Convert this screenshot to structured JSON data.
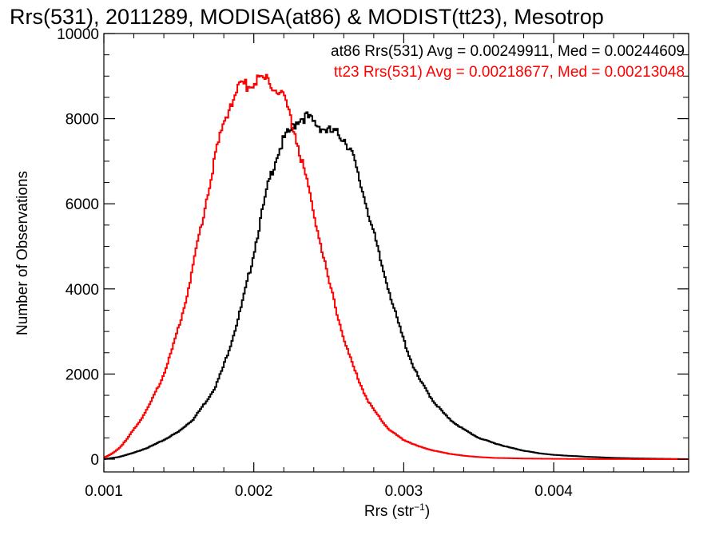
{
  "chart_data": {
    "type": "line",
    "step": true,
    "title": "Rrs(531), 2011289, MODISA(at86) & MODIST(tt23), Mesotrop",
    "xlabel_main": "Rrs (str",
    "xlabel_sup": "−1",
    "xlabel_close": ")",
    "ylabel": "Number of Observations",
    "xlim": [
      0.001,
      0.0049
    ],
    "ylim": [
      -300,
      10000
    ],
    "xticks": [
      0.001,
      0.002,
      0.003,
      0.004
    ],
    "xtick_labels": [
      "0.001",
      "0.002",
      "0.003",
      "0.004"
    ],
    "yticks": [
      0,
      2000,
      4000,
      6000,
      8000,
      10000
    ],
    "ytick_labels": [
      "0",
      "2000",
      "4000",
      "6000",
      "8000",
      "10000"
    ],
    "grid": false,
    "annotations": [
      {
        "text": "at86 Rrs(531) Avg = 0.00249911, Med = 0.00244609",
        "color": "#000000"
      },
      {
        "text": "tt23 Rrs(531) Avg = 0.00218677, Med = 0.00213048",
        "color": "#ff0000"
      }
    ],
    "series": [
      {
        "color": "#000000",
        "x": [
          0.001,
          0.0011,
          0.0012,
          0.0013,
          0.0014,
          0.0015,
          0.0016,
          0.0017,
          0.00175,
          0.0018,
          0.00185,
          0.0019,
          0.00195,
          0.002,
          0.00205,
          0.0021,
          0.00215,
          0.0022,
          0.00225,
          0.0023,
          0.00235,
          0.0024,
          0.00245,
          0.0025,
          0.00255,
          0.0026,
          0.00265,
          0.0027,
          0.00275,
          0.0028,
          0.00285,
          0.0029,
          0.00295,
          0.003,
          0.00305,
          0.0031,
          0.0032,
          0.0033,
          0.0034,
          0.0035,
          0.0036,
          0.0037,
          0.0038,
          0.0039,
          0.004,
          0.0042,
          0.0044,
          0.0046,
          0.0048,
          0.0049
        ],
        "y": [
          0,
          50,
          150,
          280,
          450,
          650,
          950,
          1450,
          1750,
          2200,
          2750,
          3350,
          4050,
          4850,
          5700,
          6500,
          7100,
          7500,
          7750,
          8000,
          8050,
          7900,
          7800,
          7700,
          7650,
          7550,
          7250,
          6600,
          6000,
          5300,
          4600,
          4000,
          3350,
          2800,
          2300,
          1900,
          1350,
          950,
          700,
          500,
          380,
          280,
          200,
          140,
          100,
          60,
          30,
          15,
          5,
          0
        ]
      },
      {
        "color": "#ff0000",
        "x": [
          0.001,
          0.00105,
          0.0011,
          0.00115,
          0.0012,
          0.00125,
          0.0013,
          0.00135,
          0.0014,
          0.00145,
          0.0015,
          0.00155,
          0.0016,
          0.00165,
          0.0017,
          0.00175,
          0.0018,
          0.00185,
          0.0019,
          0.00195,
          0.002,
          0.00205,
          0.0021,
          0.00215,
          0.0022,
          0.00225,
          0.0023,
          0.00235,
          0.0024,
          0.00245,
          0.0025,
          0.00255,
          0.0026,
          0.00265,
          0.0027,
          0.00275,
          0.0028,
          0.0029,
          0.003,
          0.0031,
          0.0032,
          0.0033,
          0.0034,
          0.0035,
          0.0036,
          0.0038,
          0.004,
          0.0042,
          0.0044,
          0.0046,
          0.0049
        ],
        "y": [
          30,
          120,
          250,
          450,
          700,
          950,
          1250,
          1600,
          2000,
          2500,
          3100,
          3800,
          4600,
          5500,
          6400,
          7200,
          7900,
          8400,
          8700,
          8800,
          8850,
          9000,
          8850,
          8700,
          8500,
          8000,
          7300,
          6600,
          5800,
          5000,
          4200,
          3500,
          2850,
          2300,
          1850,
          1450,
          1150,
          700,
          450,
          300,
          200,
          130,
          80,
          50,
          30,
          15,
          8,
          4,
          2,
          1,
          0
        ]
      }
    ]
  }
}
